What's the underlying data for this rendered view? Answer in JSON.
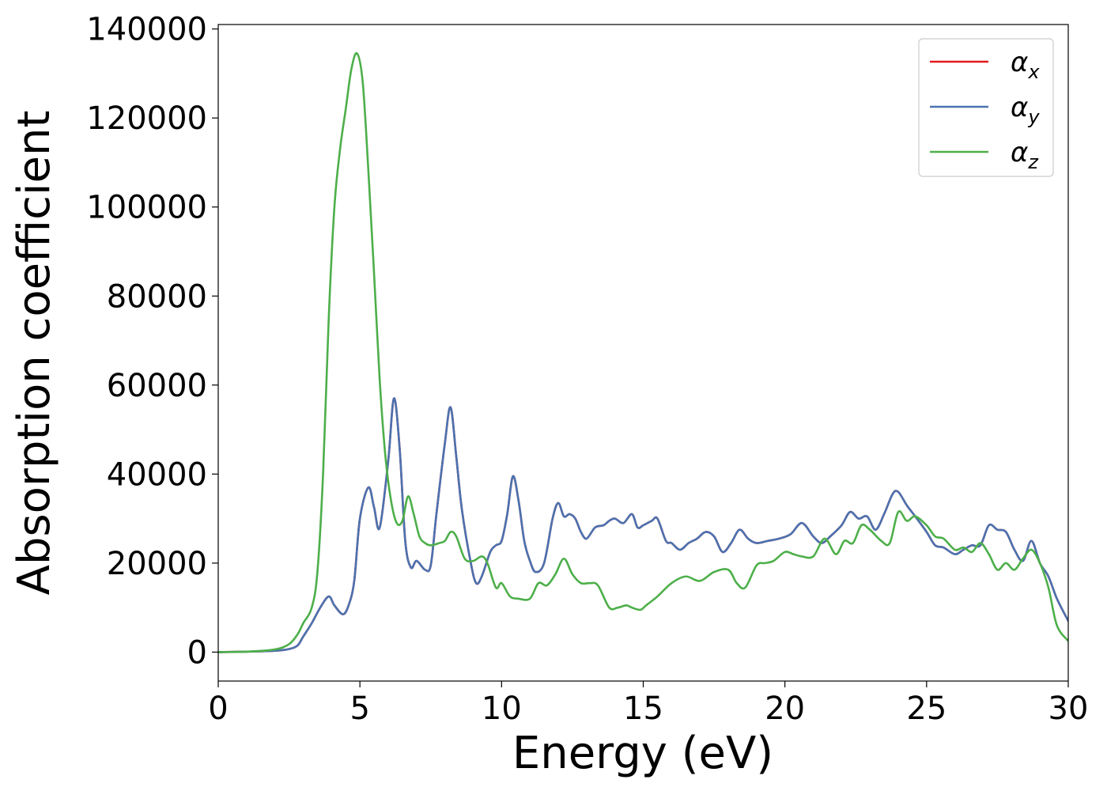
{
  "chart_data": {
    "type": "line",
    "title": "",
    "xlabel": "Energy (eV)",
    "ylabel": "Absorption coefficient",
    "xlim": [
      0,
      30
    ],
    "ylim": [
      -6500,
      141000
    ],
    "xticks": [
      0,
      5,
      10,
      15,
      20,
      25,
      30
    ],
    "yticks": [
      0,
      20000,
      40000,
      60000,
      80000,
      100000,
      120000,
      140000
    ],
    "grid": false,
    "legend_position": "top-right",
    "series": [
      {
        "name": "α_x",
        "label_main": "α",
        "label_sub": "x",
        "color": "#e41a1c",
        "x": [
          0,
          1,
          2,
          2.5,
          2.8,
          3.0,
          3.3,
          3.6,
          3.9,
          4.1,
          4.4,
          4.6,
          4.8,
          5.0,
          5.3,
          5.5,
          5.7,
          6.0,
          6.2,
          6.4,
          6.6,
          6.8,
          7.0,
          7.3,
          7.5,
          7.7,
          8.0,
          8.2,
          8.4,
          8.6,
          8.9,
          9.1,
          9.3,
          9.6,
          9.8,
          10.0,
          10.2,
          10.4,
          10.6,
          10.8,
          11.0,
          11.2,
          11.5,
          11.8,
          12.0,
          12.2,
          12.4,
          12.6,
          12.8,
          13.0,
          13.3,
          13.6,
          13.8,
          14.0,
          14.3,
          14.6,
          14.8,
          15.0,
          15.3,
          15.5,
          15.8,
          16.0,
          16.3,
          16.6,
          16.9,
          17.2,
          17.5,
          17.8,
          18.1,
          18.4,
          18.7,
          19.0,
          19.4,
          19.8,
          20.2,
          20.6,
          21.0,
          21.3,
          21.6,
          22.0,
          22.3,
          22.6,
          22.9,
          23.2,
          23.5,
          23.8,
          24.0,
          24.3,
          24.6,
          25.0,
          25.3,
          25.6,
          26.0,
          26.3,
          26.6,
          26.9,
          27.2,
          27.5,
          27.8,
          28.1,
          28.4,
          28.7,
          29.0,
          29.3,
          29.6,
          30.0
        ],
        "y": [
          0,
          100,
          300,
          700,
          1500,
          3500,
          6500,
          10000,
          12500,
          10500,
          8500,
          10500,
          16000,
          30000,
          37000,
          32500,
          28000,
          43000,
          57000,
          46000,
          25000,
          19000,
          20500,
          18500,
          19500,
          31000,
          47000,
          55000,
          44000,
          32000,
          20500,
          15500,
          17000,
          22500,
          24000,
          25000,
          31000,
          39500,
          34000,
          25000,
          20500,
          18000,
          20000,
          30000,
          33500,
          30500,
          31000,
          30000,
          27000,
          25500,
          28000,
          28500,
          29500,
          30000,
          29000,
          31000,
          28000,
          28500,
          29500,
          30000,
          25000,
          24500,
          23000,
          24500,
          25500,
          27000,
          26000,
          22500,
          24500,
          27500,
          25500,
          24500,
          25000,
          25500,
          26500,
          29000,
          26000,
          24500,
          26000,
          28500,
          31500,
          30000,
          30500,
          27500,
          31000,
          35500,
          36000,
          33000,
          30500,
          27000,
          24000,
          23500,
          22000,
          23000,
          24000,
          24000,
          28500,
          27500,
          27000,
          23000,
          20500,
          25000,
          20000,
          17000,
          12000,
          7000
        ]
      },
      {
        "name": "α_y",
        "label_main": "α",
        "label_sub": "y",
        "color": "#4a72b0",
        "x": [
          0,
          1,
          2,
          2.5,
          2.8,
          3.0,
          3.3,
          3.6,
          3.9,
          4.1,
          4.4,
          4.6,
          4.8,
          5.0,
          5.3,
          5.5,
          5.7,
          6.0,
          6.2,
          6.4,
          6.6,
          6.8,
          7.0,
          7.3,
          7.5,
          7.7,
          8.0,
          8.2,
          8.4,
          8.6,
          8.9,
          9.1,
          9.3,
          9.6,
          9.8,
          10.0,
          10.2,
          10.4,
          10.6,
          10.8,
          11.0,
          11.2,
          11.5,
          11.8,
          12.0,
          12.2,
          12.4,
          12.6,
          12.8,
          13.0,
          13.3,
          13.6,
          13.8,
          14.0,
          14.3,
          14.6,
          14.8,
          15.0,
          15.3,
          15.5,
          15.8,
          16.0,
          16.3,
          16.6,
          16.9,
          17.2,
          17.5,
          17.8,
          18.1,
          18.4,
          18.7,
          19.0,
          19.4,
          19.8,
          20.2,
          20.6,
          21.0,
          21.3,
          21.6,
          22.0,
          22.3,
          22.6,
          22.9,
          23.2,
          23.5,
          23.8,
          24.0,
          24.3,
          24.6,
          25.0,
          25.3,
          25.6,
          26.0,
          26.3,
          26.6,
          26.9,
          27.2,
          27.5,
          27.8,
          28.1,
          28.4,
          28.7,
          29.0,
          29.3,
          29.6,
          30.0
        ],
        "y": [
          0,
          100,
          300,
          700,
          1500,
          3500,
          6500,
          10000,
          12500,
          10500,
          8500,
          10500,
          16000,
          30000,
          37000,
          32500,
          28000,
          43000,
          57000,
          46000,
          25000,
          19000,
          20500,
          18500,
          19500,
          31000,
          47000,
          55000,
          44000,
          32000,
          20500,
          15500,
          17000,
          22500,
          24000,
          25000,
          31000,
          39500,
          34000,
          25000,
          20500,
          18000,
          20000,
          30000,
          33500,
          30500,
          31000,
          30000,
          27000,
          25500,
          28000,
          28500,
          29500,
          30000,
          29000,
          31000,
          28000,
          28500,
          29500,
          30000,
          25000,
          24500,
          23000,
          24500,
          25500,
          27000,
          26000,
          22500,
          24500,
          27500,
          25500,
          24500,
          25000,
          25500,
          26500,
          29000,
          26000,
          24500,
          26000,
          28500,
          31500,
          30000,
          30500,
          27500,
          31000,
          35500,
          36000,
          33000,
          30500,
          27000,
          24000,
          23500,
          22000,
          23000,
          24000,
          24000,
          28500,
          27500,
          27000,
          23000,
          20500,
          25000,
          20000,
          17000,
          12000,
          7000
        ]
      },
      {
        "name": "α_z",
        "label_main": "α",
        "label_sub": "z",
        "color": "#4daf4a",
        "x": [
          0,
          1,
          2,
          2.5,
          2.8,
          3.0,
          3.3,
          3.5,
          3.7,
          3.9,
          4.1,
          4.3,
          4.5,
          4.7,
          4.9,
          5.1,
          5.3,
          5.5,
          5.7,
          5.9,
          6.1,
          6.3,
          6.5,
          6.7,
          6.9,
          7.1,
          7.3,
          7.5,
          7.8,
          8.0,
          8.2,
          8.4,
          8.7,
          9.0,
          9.3,
          9.5,
          9.8,
          10.0,
          10.3,
          10.6,
          11.0,
          11.3,
          11.6,
          11.9,
          12.2,
          12.5,
          12.8,
          13.1,
          13.4,
          13.8,
          14.1,
          14.4,
          14.6,
          14.9,
          15.1,
          15.5,
          16.0,
          16.5,
          17.0,
          17.5,
          18.0,
          18.3,
          18.6,
          19.0,
          19.3,
          19.6,
          20.0,
          20.3,
          20.6,
          21.0,
          21.4,
          21.8,
          22.1,
          22.4,
          22.7,
          23.0,
          23.4,
          23.7,
          24.0,
          24.3,
          24.6,
          25.0,
          25.3,
          25.6,
          26.0,
          26.3,
          26.6,
          26.9,
          27.2,
          27.5,
          27.8,
          28.1,
          28.4,
          28.7,
          29.0,
          29.3,
          29.6,
          30.0
        ],
        "y": [
          0,
          100,
          600,
          1800,
          4000,
          6500,
          10000,
          18000,
          40000,
          75000,
          100000,
          113000,
          122000,
          131000,
          134500,
          128000,
          108000,
          85000,
          61000,
          44000,
          34000,
          29000,
          29500,
          35000,
          31000,
          26000,
          24500,
          24000,
          24500,
          25000,
          27000,
          26000,
          21000,
          20500,
          21500,
          20000,
          14500,
          15500,
          12500,
          12000,
          12000,
          15500,
          15000,
          17500,
          21000,
          17500,
          15500,
          15500,
          15000,
          10000,
          10000,
          10500,
          10000,
          9500,
          10500,
          12500,
          15500,
          17000,
          16000,
          18000,
          18500,
          15500,
          14500,
          19500,
          20000,
          20500,
          22500,
          22000,
          21500,
          21500,
          25500,
          22000,
          25000,
          24500,
          28500,
          27500,
          25000,
          24500,
          31500,
          29500,
          30500,
          28500,
          26000,
          25500,
          23000,
          23500,
          22500,
          24500,
          22000,
          18500,
          20000,
          18500,
          21000,
          23000,
          20000,
          14500,
          6000,
          2500
        ]
      }
    ]
  }
}
